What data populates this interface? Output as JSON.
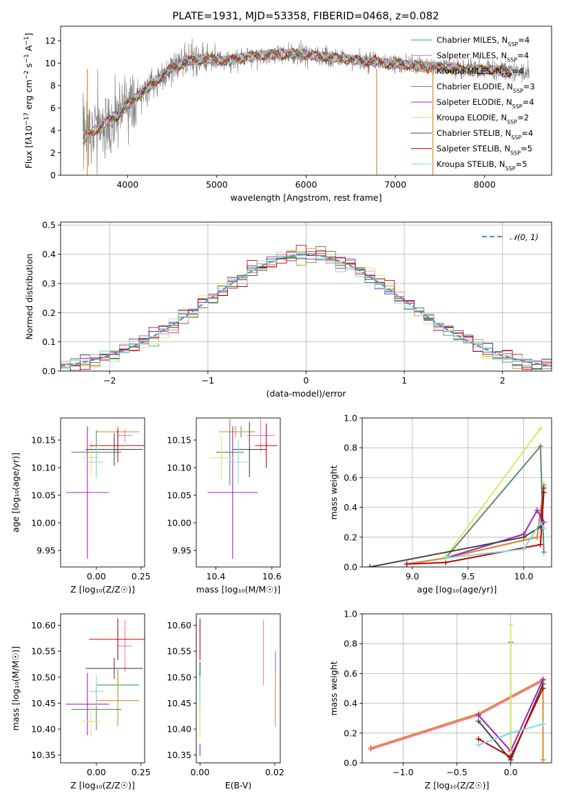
{
  "figure_title": "PLATE=1931, MJD=53358, FIBERID=0468, z=0.082",
  "legend_entries": [
    {
      "label": "Chabrier MILES, N",
      "sub": "SSP",
      "suffix": "=4",
      "color": "#3a9e4a"
    },
    {
      "label": "Salpeter MILES, N",
      "sub": "SSP",
      "suffix": "=4",
      "color": "#ff77aa"
    },
    {
      "label": "Kroupa MILES, N",
      "sub": "SSP",
      "suffix": "=4",
      "color": "#d98a2a"
    },
    {
      "label": "Chabrier ELODIE, N",
      "sub": "SSP",
      "suffix": "=3",
      "color": "#5a8a6a"
    },
    {
      "label": "Salpeter ELODIE, N",
      "sub": "SSP",
      "suffix": "=4",
      "color": "#a020c0"
    },
    {
      "label": "Kroupa ELODIE, N",
      "sub": "SSP",
      "suffix": "=2",
      "color": "#d8e868"
    },
    {
      "label": "Chabrier STELIB, N",
      "sub": "SSP",
      "suffix": "=4",
      "color": "#444444"
    },
    {
      "label": "Salpeter STELIB, N",
      "sub": "SSP",
      "suffix": "=5",
      "color": "#c00000"
    },
    {
      "label": "Kroupa STELIB, N",
      "sub": "SSP",
      "suffix": "=5",
      "color": "#80d8e0"
    }
  ],
  "normal_legend": "𝒩(0, 1)",
  "chart_data": [
    {
      "id": "spectrum",
      "type": "line",
      "xlabel": "wavelength [Angstrom, rest frame]",
      "ylabel_html": "Flux [f<tspan font-style='italic'>λ</tspan>10<tspan baseline-shift='super' font-size='9'>−17</tspan> erg cm<tspan baseline-shift='super' font-size='9'>−2</tspan> s<tspan baseline-shift='super' font-size='9'>−1</tspan> A<tspan baseline-shift='super' font-size='9'>−1</tspan>]",
      "xlim": [
        3250,
        8750
      ],
      "ylim": [
        0,
        13.3
      ],
      "xticks": [
        4000,
        5000,
        6000,
        7000,
        8000
      ],
      "yticks": [
        0,
        2,
        4,
        6,
        8,
        10,
        12
      ],
      "continuum": [
        [
          3500,
          3.2
        ],
        [
          3700,
          4.4
        ],
        [
          3900,
          5.4
        ],
        [
          4100,
          7.0
        ],
        [
          4300,
          8.3
        ],
        [
          4500,
          9.6
        ],
        [
          4700,
          10.2
        ],
        [
          4900,
          10.4
        ],
        [
          5100,
          10.2
        ],
        [
          5300,
          10.5
        ],
        [
          5500,
          10.7
        ],
        [
          5700,
          10.8
        ],
        [
          5900,
          10.8
        ],
        [
          6100,
          10.7
        ],
        [
          6300,
          10.5
        ],
        [
          6500,
          10.3
        ],
        [
          6700,
          10.2
        ],
        [
          6900,
          10.0
        ],
        [
          7100,
          9.9
        ],
        [
          7300,
          9.7
        ],
        [
          7500,
          9.6
        ],
        [
          7700,
          9.5
        ],
        [
          7900,
          9.4
        ],
        [
          8100,
          9.4
        ],
        [
          8300,
          9.3
        ],
        [
          8500,
          9.2
        ]
      ]
    },
    {
      "id": "residuals",
      "type": "step-histogram",
      "xlabel": "(data-model)/error",
      "ylabel": "Normed distribution",
      "xlim": [
        -2.5,
        2.5
      ],
      "ylim": [
        0,
        0.51
      ],
      "xticks": [
        -2,
        -1,
        0,
        1,
        2
      ],
      "yticks": [
        0.0,
        0.1,
        0.2,
        0.3,
        0.4,
        0.5
      ],
      "bin_width": 0.1,
      "grid": true,
      "legend_position": "upper right"
    },
    {
      "id": "age_vs_Z",
      "type": "errorbar",
      "xlabel": "Z [log₁₀(Z/Z☉)]",
      "ylabel": "age  [log₁₀(age/yr)]",
      "xlim": [
        -0.2,
        0.27
      ],
      "ylim": [
        9.92,
        10.19
      ],
      "xticks": [
        0.0,
        0.25
      ],
      "xtick_labels": [
        "0.00",
        "0.25"
      ],
      "yticks": [
        9.95,
        10.0,
        10.05,
        10.1,
        10.15
      ],
      "ytick_labels": [
        "9.95",
        "10.00",
        "10.05",
        "10.10",
        "10.15"
      ],
      "points": [
        {
          "x": 0.12,
          "y": 10.165,
          "xerr": 0.12,
          "yerr": 0.01,
          "color": "#3a9e4a"
        },
        {
          "x": 0.16,
          "y": 10.158,
          "xerr": 0.04,
          "yerr": 0.012,
          "color": "#ff77aa"
        },
        {
          "x": 0.12,
          "y": 10.165,
          "xerr": 0.12,
          "yerr": 0.01,
          "color": "#d98a2a"
        },
        {
          "x": 0.0,
          "y": 10.128,
          "xerr": 0.14,
          "yerr": 0.04,
          "color": "#5a8a6a"
        },
        {
          "x": -0.05,
          "y": 10.055,
          "xerr": 0.12,
          "yerr": 0.12,
          "color": "#a020c0"
        },
        {
          "x": -0.03,
          "y": 10.118,
          "xerr": 0.05,
          "yerr": 0.03,
          "color": "#d8e868"
        },
        {
          "x": 0.1,
          "y": 10.133,
          "xerr": 0.16,
          "yerr": 0.03,
          "color": "#444444"
        },
        {
          "x": 0.12,
          "y": 10.14,
          "xerr": 0.16,
          "yerr": 0.03,
          "color": "#c00000"
        },
        {
          "x": 0.0,
          "y": 10.11,
          "xerr": 0.04,
          "yerr": 0.03,
          "color": "#80d8e0"
        }
      ]
    },
    {
      "id": "age_vs_mass",
      "type": "errorbar",
      "xlabel": "mass [log₁₀(M/M☉)]",
      "ylabel": "",
      "xlim": [
        10.33,
        10.63
      ],
      "ylim": [
        9.92,
        10.19
      ],
      "xticks": [
        10.4,
        10.6
      ],
      "xtick_labels": [
        "10.4",
        "10.6"
      ],
      "yticks": [
        9.95,
        10.0,
        10.05,
        10.1,
        10.15
      ],
      "ytick_labels": [
        "9.95",
        "10.00",
        "10.05",
        "10.10",
        "10.15"
      ],
      "points": [
        {
          "x": 10.49,
          "y": 10.165,
          "xerr": 0.05,
          "yerr": 0.01,
          "color": "#3a9e4a"
        },
        {
          "x": 10.56,
          "y": 10.158,
          "xerr": 0.05,
          "yerr": 0.03,
          "color": "#ff77aa"
        },
        {
          "x": 10.47,
          "y": 10.165,
          "xerr": 0.06,
          "yerr": 0.01,
          "color": "#d98a2a"
        },
        {
          "x": 10.45,
          "y": 10.128,
          "xerr": 0.05,
          "yerr": 0.06,
          "color": "#5a8a6a"
        },
        {
          "x": 10.46,
          "y": 10.055,
          "xerr": 0.09,
          "yerr": 0.12,
          "color": "#a020c0"
        },
        {
          "x": 10.42,
          "y": 10.118,
          "xerr": 0.04,
          "yerr": 0.04,
          "color": "#d8e868"
        },
        {
          "x": 10.52,
          "y": 10.133,
          "xerr": 0.06,
          "yerr": 0.05,
          "color": "#444444"
        },
        {
          "x": 10.58,
          "y": 10.14,
          "xerr": 0.04,
          "yerr": 0.04,
          "color": "#c00000"
        },
        {
          "x": 10.48,
          "y": 10.11,
          "xerr": 0.04,
          "yerr": 0.04,
          "color": "#80d8e0"
        }
      ]
    },
    {
      "id": "weight_vs_age",
      "type": "line",
      "xlabel": "age  [log₁₀(age/yr)]",
      "ylabel": "mass weight",
      "xlim": [
        8.55,
        10.25
      ],
      "ylim": [
        0.0,
        1.0
      ],
      "xticks": [
        9.0,
        9.5,
        10.0
      ],
      "xtick_labels": [
        "9.0",
        "9.5",
        "10.0"
      ],
      "yticks": [
        0.0,
        0.2,
        0.4,
        0.6,
        0.8,
        1.0
      ],
      "ytick_labels": [
        "0.0",
        "0.2",
        "0.4",
        "0.6",
        "0.8",
        "1.0"
      ],
      "grid": true,
      "series": [
        {
          "color": "#3a9e4a",
          "x": [
            8.95,
            9.3,
            10.12,
            10.18
          ],
          "y": [
            0.02,
            0.06,
            0.2,
            0.55
          ]
        },
        {
          "color": "#ff77aa",
          "x": [
            8.95,
            9.3,
            10.12,
            10.18
          ],
          "y": [
            0.02,
            0.06,
            0.2,
            0.55
          ]
        },
        {
          "color": "#d98a2a",
          "x": [
            8.95,
            9.3,
            10.12,
            10.18
          ],
          "y": [
            0.02,
            0.06,
            0.2,
            0.55
          ]
        },
        {
          "color": "#5a8a6a",
          "x": [
            9.3,
            10.15,
            10.18
          ],
          "y": [
            0.06,
            0.81,
            0.1
          ]
        },
        {
          "color": "#a020c0",
          "x": [
            9.3,
            10.0,
            10.12,
            10.18
          ],
          "y": [
            0.06,
            0.22,
            0.38,
            0.3
          ]
        },
        {
          "color": "#d8e868",
          "x": [
            9.3,
            10.15
          ],
          "y": [
            0.07,
            0.93
          ]
        },
        {
          "color": "#444444",
          "x": [
            8.62,
            10.0,
            10.15,
            10.18
          ],
          "y": [
            0.0,
            0.2,
            0.27,
            0.53
          ]
        },
        {
          "color": "#c00000",
          "x": [
            8.95,
            9.3,
            10.15,
            10.18
          ],
          "y": [
            0.02,
            0.03,
            0.15,
            0.5
          ]
        },
        {
          "color": "#80d8e0",
          "x": [
            9.3,
            10.0,
            10.15,
            10.18
          ],
          "y": [
            0.06,
            0.12,
            0.3,
            0.26
          ]
        }
      ]
    },
    {
      "id": "mass_vs_Z",
      "type": "errorbar",
      "xlabel": "Z [log₁₀(Z/Z☉)]",
      "ylabel": "mass [log₁₀(M/M☉)]",
      "xlim": [
        -0.2,
        0.27
      ],
      "ylim": [
        10.335,
        10.622
      ],
      "xticks": [
        0.0,
        0.25
      ],
      "xtick_labels": [
        "0.00",
        "0.25"
      ],
      "yticks": [
        10.35,
        10.4,
        10.45,
        10.5,
        10.55,
        10.6
      ],
      "ytick_labels": [
        "10.35",
        "10.40",
        "10.45",
        "10.50",
        "10.55",
        "10.60"
      ],
      "points": [
        {
          "x": 0.12,
          "y": 10.485,
          "xerr": 0.12,
          "yerr": 0.03,
          "color": "#3a9e4a"
        },
        {
          "x": 0.16,
          "y": 10.56,
          "xerr": 0.04,
          "yerr": 0.05,
          "color": "#ff77aa"
        },
        {
          "x": 0.12,
          "y": 10.455,
          "xerr": 0.12,
          "yerr": 0.05,
          "color": "#d98a2a"
        },
        {
          "x": 0.0,
          "y": 10.438,
          "xerr": 0.14,
          "yerr": 0.04,
          "color": "#5a8a6a"
        },
        {
          "x": -0.05,
          "y": 10.448,
          "xerr": 0.12,
          "yerr": 0.06,
          "color": "#a020c0"
        },
        {
          "x": -0.03,
          "y": 10.415,
          "xerr": 0.05,
          "yerr": 0.03,
          "color": "#d8e868"
        },
        {
          "x": 0.1,
          "y": 10.517,
          "xerr": 0.16,
          "yerr": 0.02,
          "color": "#444444"
        },
        {
          "x": 0.12,
          "y": 10.573,
          "xerr": 0.16,
          "yerr": 0.04,
          "color": "#c00000"
        },
        {
          "x": 0.0,
          "y": 10.473,
          "xerr": 0.04,
          "yerr": 0.03,
          "color": "#80d8e0"
        }
      ]
    },
    {
      "id": "mass_vs_ebv",
      "type": "errorbar",
      "xlabel": "E(B-V)",
      "ylabel": "",
      "xlim": [
        -0.001,
        0.0215
      ],
      "ylim": [
        10.335,
        10.622
      ],
      "xticks": [
        0.0,
        0.02
      ],
      "xtick_labels": [
        "0.00",
        "0.02"
      ],
      "yticks": [
        10.35,
        10.4,
        10.45,
        10.5,
        10.55,
        10.6
      ],
      "ytick_labels": [
        "10.35",
        "10.40",
        "10.45",
        "10.50",
        "10.55",
        "10.60"
      ],
      "points": [
        {
          "x": 0.0,
          "y": 10.485,
          "xerr": 0.0,
          "yerr": 0.03,
          "color": "#3a9e4a"
        },
        {
          "x": 0.017,
          "y": 10.548,
          "xerr": 0.0,
          "yerr": 0.063,
          "color": "#ff77aa"
        },
        {
          "x": 0.0202,
          "y": 10.46,
          "xerr": 0.0,
          "yerr": 0.055,
          "color": "#d98a2a"
        },
        {
          "x": 0.0,
          "y": 10.438,
          "xerr": 0.0,
          "yerr": 0.04,
          "color": "#5a8a6a"
        },
        {
          "x": 0.0,
          "y": 10.36,
          "xerr": 0.0,
          "yerr": 0.012,
          "color": "#a020c0"
        },
        {
          "x": 0.0,
          "y": 10.415,
          "xerr": 0.0,
          "yerr": 0.03,
          "color": "#d8e868"
        },
        {
          "x": 0.0,
          "y": 10.505,
          "xerr": 0.0,
          "yerr": 0.025,
          "color": "#444444"
        },
        {
          "x": 0.0,
          "y": 10.573,
          "xerr": 0.0,
          "yerr": 0.04,
          "color": "#c00000"
        },
        {
          "x": 0.0,
          "y": 10.473,
          "xerr": 0.0,
          "yerr": 0.03,
          "color": "#80d8e0"
        },
        {
          "x": 0.0202,
          "y": 10.53,
          "xerr": 0.0,
          "yerr": 0.02,
          "color": "#6a7ad8"
        }
      ]
    },
    {
      "id": "weight_vs_Z",
      "type": "line",
      "xlabel": "Z [log₁₀(Z/Z☉)]",
      "ylabel": "mass weight",
      "xlim": [
        -1.38,
        0.38
      ],
      "ylim": [
        0.0,
        1.0
      ],
      "xticks": [
        -1.0,
        -0.5,
        0.0
      ],
      "xtick_labels": [
        "−1.0",
        "−0.5",
        "0.0"
      ],
      "yticks": [
        0.0,
        0.2,
        0.4,
        0.6,
        0.8,
        1.0
      ],
      "ytick_labels": [
        "0.0",
        "0.2",
        "0.4",
        "0.6",
        "0.8",
        "1.0"
      ],
      "grid": true,
      "series": [
        {
          "color": "#3a9e4a",
          "x": [
            -1.3,
            -0.3,
            0.3
          ],
          "y": [
            0.1,
            0.33,
            0.56
          ]
        },
        {
          "color": "#ff77aa",
          "x": [
            -1.3,
            -0.3,
            0.3
          ],
          "y": [
            0.09,
            0.32,
            0.55
          ]
        },
        {
          "color": "#d98a2a",
          "x": [
            -1.3,
            -0.3,
            0.3,
            0.3
          ],
          "y": [
            0.1,
            0.33,
            0.56,
            0.02
          ]
        },
        {
          "color": "#5a8a6a",
          "x": [
            0.0,
            0.0
          ],
          "y": [
            0.81,
            0.02
          ]
        },
        {
          "color": "#a020c0",
          "x": [
            -0.3,
            0.0,
            0.3
          ],
          "y": [
            0.32,
            0.08,
            0.56
          ]
        },
        {
          "color": "#d8e868",
          "x": [
            0.0,
            0.0
          ],
          "y": [
            0.93,
            0.07
          ]
        },
        {
          "color": "#444444",
          "x": [
            -0.3,
            0.0,
            0.3
          ],
          "y": [
            0.28,
            0.02,
            0.53
          ]
        },
        {
          "color": "#c00000",
          "x": [
            -0.3,
            0.0,
            0.3
          ],
          "y": [
            0.16,
            0.04,
            0.5
          ]
        },
        {
          "color": "#80d8e0",
          "x": [
            -0.3,
            0.0,
            0.3
          ],
          "y": [
            0.12,
            0.2,
            0.26
          ]
        }
      ]
    }
  ]
}
